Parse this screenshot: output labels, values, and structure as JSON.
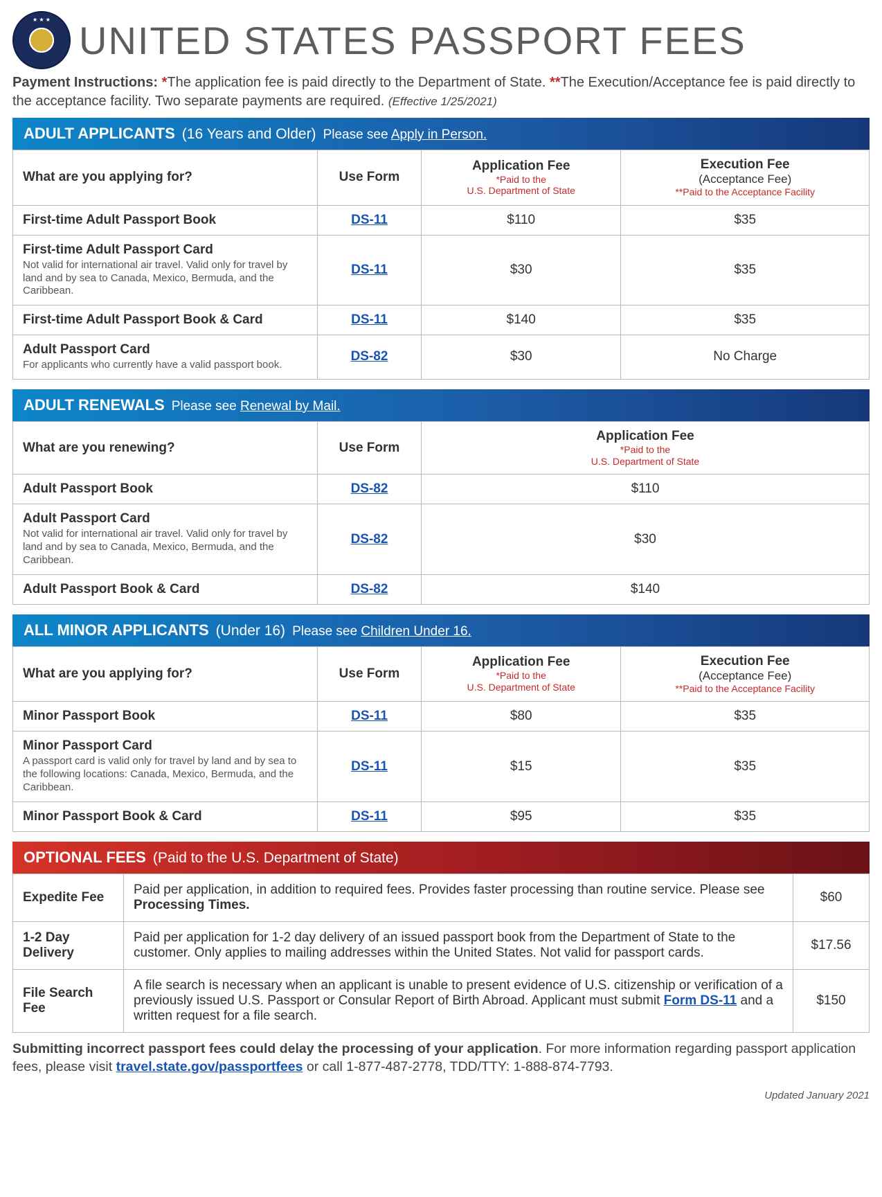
{
  "page_title": "UNITED STATES PASSPORT FEES",
  "instructions": {
    "label": "Payment Instructions: ",
    "star1": "*",
    "text1": "The application fee is paid directly to the Department of State. ",
    "star2": "**",
    "text2": "The Execution/Acceptance fee is paid directly to the acceptance facility. Two separate payments are required. ",
    "effective": "(Effective 1/25/2021)"
  },
  "headers": {
    "what_apply": "What are you applying for?",
    "what_renew": "What are you renewing?",
    "use_form": "Use Form",
    "app_fee": "Application Fee",
    "app_fee_sub1": "*Paid to the",
    "app_fee_sub2": "U.S. Department of State",
    "exec_fee": "Execution Fee",
    "exec_fee_sub0": "(Acceptance Fee)",
    "exec_fee_sub1": "**Paid to the Acceptance Facility"
  },
  "sections": {
    "adult": {
      "title": "ADULT APPLICANTS",
      "subtitle": "(16 Years and Older)",
      "please_prefix": "Please see ",
      "please_link": "Apply in Person.",
      "rows": [
        {
          "label": "First-time Adult Passport Book",
          "note": "",
          "form": "DS-11",
          "app": "$110",
          "exec": "$35"
        },
        {
          "label": "First-time Adult Passport Card",
          "note": "Not valid for international air travel. Valid only for travel by land and by sea to Canada, Mexico, Bermuda, and the Caribbean.",
          "form": "DS-11",
          "app": "$30",
          "exec": "$35"
        },
        {
          "label": "First-time Adult Passport Book & Card",
          "note": "",
          "form": "DS-11",
          "app": "$140",
          "exec": "$35"
        },
        {
          "label": "Adult Passport Card",
          "note": "For applicants who currently have a valid passport book.",
          "form": "DS-82",
          "app": "$30",
          "exec": "No Charge"
        }
      ]
    },
    "renewals": {
      "title": "ADULT RENEWALS",
      "please_prefix": "Please see ",
      "please_link": "Renewal by Mail.",
      "rows": [
        {
          "label": "Adult Passport Book",
          "note": "",
          "form": "DS-82",
          "app": "$110"
        },
        {
          "label": "Adult Passport Card",
          "note": "Not valid for international air travel. Valid only for travel by land and by sea to Canada, Mexico, Bermuda, and the Caribbean.",
          "form": "DS-82",
          "app": "$30"
        },
        {
          "label": "Adult Passport Book & Card",
          "note": "",
          "form": "DS-82",
          "app": "$140"
        }
      ]
    },
    "minor": {
      "title": "ALL MINOR APPLICANTS",
      "subtitle": "(Under 16)",
      "please_prefix": "Please see ",
      "please_link": "Children Under 16.",
      "rows": [
        {
          "label": "Minor Passport Book",
          "note": "",
          "form": "DS-11",
          "app": "$80",
          "exec": "$35"
        },
        {
          "label": "Minor Passport Card",
          "note": "A passport card is valid only for travel by land and by sea to the following locations: Canada, Mexico, Bermuda, and the Caribbean.",
          "form": "DS-11",
          "app": "$15",
          "exec": "$35"
        },
        {
          "label": "Minor Passport Book & Card",
          "note": "",
          "form": "DS-11",
          "app": "$95",
          "exec": "$35"
        }
      ]
    },
    "optional": {
      "title": "OPTIONAL FEES",
      "subtitle": "(Paid to the U.S. Department of State)",
      "rows": [
        {
          "label": "Expedite Fee",
          "desc_pre": "Paid per application, in addition to required fees. Provides faster processing than routine service. Please see ",
          "desc_bold": "Processing Times.",
          "desc_post": "",
          "price": "$60"
        },
        {
          "label": "1-2 Day Delivery",
          "desc_pre": "Paid per application for 1-2 day delivery of an issued passport book from the Department of State to the customer. Only applies to mailing addresses within the United States. Not valid for passport cards.",
          "desc_bold": "",
          "desc_post": "",
          "price": "$17.56"
        },
        {
          "label": "File Search Fee",
          "desc_pre": "A file search is necessary when an applicant is unable to present evidence of U.S. citizenship or verification of a previously issued U.S. Passport or Consular Report of Birth Abroad. Applicant must submit ",
          "desc_link": "Form DS-11",
          "desc_post": " and a written request for a file search.",
          "price": "$150"
        }
      ]
    }
  },
  "footer": {
    "bold": "Submitting incorrect passport fees could delay the processing of your application",
    "text1": ". For more information regarding passport application fees, please visit ",
    "link": "travel.state.gov/passportfees",
    "text2": " or call 1-877-487-2778, TDD/TTY: 1-888-874-7793.",
    "updated": "Updated January 2021"
  }
}
